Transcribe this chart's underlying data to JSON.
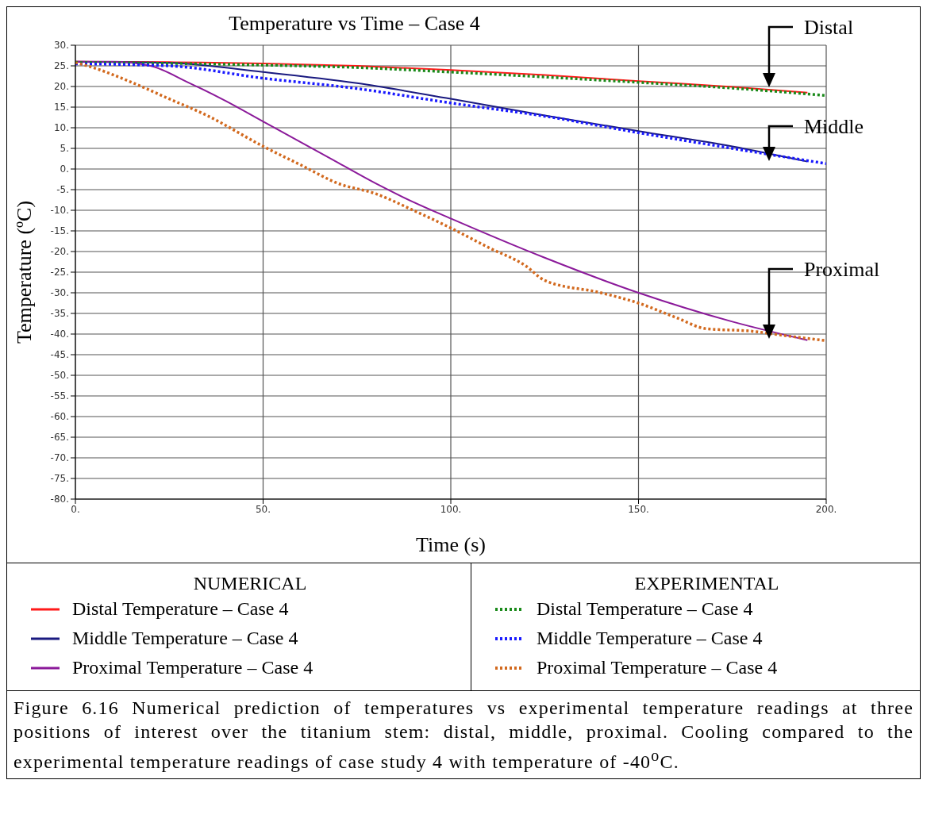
{
  "chart_data": {
    "type": "line",
    "title": "Temperature vs Time – Case 4",
    "xlabel": "Time (s)",
    "ylabel": "Temperature (ºC)",
    "xlim": [
      0,
      200
    ],
    "xticks": [
      {
        "value": 0,
        "label": "0."
      },
      {
        "value": 50,
        "label": "50."
      },
      {
        "value": 100,
        "label": "100."
      },
      {
        "value": 150,
        "label": "150."
      },
      {
        "value": 200,
        "label": "200."
      }
    ],
    "ylim": [
      -80,
      30
    ],
    "yticks": [
      {
        "value": 30,
        "label": "30."
      },
      {
        "value": 25,
        "label": "25."
      },
      {
        "value": 20,
        "label": "20."
      },
      {
        "value": 15,
        "label": "15."
      },
      {
        "value": 10,
        "label": "10."
      },
      {
        "value": 5,
        "label": "5."
      },
      {
        "value": 0,
        "label": "0."
      },
      {
        "value": -5,
        "label": "-5."
      },
      {
        "value": -10,
        "label": "-10."
      },
      {
        "value": -15,
        "label": "-15."
      },
      {
        "value": -20,
        "label": "-20."
      },
      {
        "value": -25,
        "label": "-25."
      },
      {
        "value": -30,
        "label": "-30."
      },
      {
        "value": -35,
        "label": "-35."
      },
      {
        "value": -40,
        "label": "-40."
      },
      {
        "value": -45,
        "label": "-45."
      },
      {
        "value": -50,
        "label": "-50."
      },
      {
        "value": -55,
        "label": "-55."
      },
      {
        "value": -60,
        "label": "-60."
      },
      {
        "value": -65,
        "label": "-65."
      },
      {
        "value": -70,
        "label": "-70."
      },
      {
        "value": -75,
        "label": "-75."
      },
      {
        "value": -80,
        "label": "-80."
      }
    ],
    "grid": true,
    "legend": "bottom",
    "marker": "none",
    "series": [
      {
        "name": "Distal Temperature – Case 4",
        "color": "#ff1a1a",
        "line_style": "solid",
        "x": [
          0,
          25,
          50,
          75,
          100,
          125,
          150,
          175,
          195
        ],
        "values": [
          26,
          25.9,
          25.6,
          25,
          24,
          22.8,
          21.3,
          19.9,
          18.5
        ]
      },
      {
        "name": "Middle Temperature – Case 4",
        "color": "#1a1a80",
        "line_style": "solid",
        "x": [
          0,
          25,
          50,
          75,
          100,
          125,
          150,
          175,
          195
        ],
        "values": [
          26,
          25.7,
          23.5,
          20.8,
          17,
          13,
          9.2,
          5.5,
          1.8
        ]
      },
      {
        "name": "Proximal Temperature – Case 4",
        "color": "#8b1a9a",
        "line_style": "solid",
        "x": [
          0,
          10,
          20,
          30,
          40,
          50,
          60,
          70,
          80,
          90,
          100,
          125,
          150,
          175,
          195
        ],
        "values": [
          26,
          26,
          25,
          21,
          16.5,
          11.5,
          6.5,
          1.5,
          -3.5,
          -8,
          -12,
          -21.5,
          -30,
          -37,
          -41.5
        ]
      },
      {
        "name": "Distal Temperature – Case 4",
        "color": "#1a8a1a",
        "line_style": "dotted",
        "x": [
          0,
          25,
          50,
          75,
          100,
          125,
          150,
          175,
          200
        ],
        "values": [
          25.8,
          25.6,
          25.2,
          24.6,
          23.5,
          22.3,
          21,
          19.6,
          17.8
        ]
      },
      {
        "name": "Middle Temperature – Case 4",
        "color": "#1a1aff",
        "line_style": "dotted",
        "x": [
          0,
          25,
          50,
          75,
          100,
          125,
          150,
          175,
          200
        ],
        "values": [
          25.5,
          25,
          22,
          19.5,
          16,
          12.8,
          8.8,
          5,
          1.3
        ]
      },
      {
        "name": "Proximal Temperature – Case 4",
        "color": "#d2691e",
        "line_style": "dotted",
        "x": [
          0,
          5,
          15,
          25,
          35,
          50,
          60,
          70,
          80,
          90,
          100,
          110,
          120,
          125,
          140,
          150,
          160,
          168,
          180,
          190,
          200
        ],
        "values": [
          25.8,
          24.5,
          21,
          17,
          13,
          5.5,
          1,
          -3.5,
          -6,
          -10,
          -14.3,
          -19,
          -23.5,
          -27,
          -30,
          -32.5,
          -36,
          -38.7,
          -39.3,
          -40.5,
          -41.6
        ]
      }
    ],
    "annotations": [
      "NUMERICAL",
      "EXPERIMENTAL",
      "Figure 6.16 Numerical prediction of temperatures vs experimental temperature readings at three positions of interest over the titanium stem: distal, middle, proximal. Cooling compared to the experimental temperature readings of case study 4 with temperature of -40$^{o}$C.",
      "Distal",
      "Middle",
      "Proximal"
    ]
  }
}
